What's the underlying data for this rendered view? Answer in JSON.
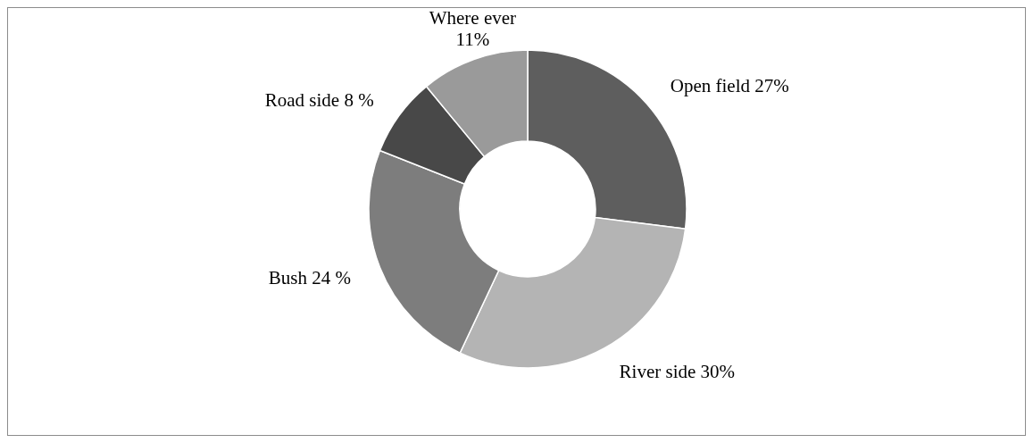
{
  "chart_data": {
    "type": "donut",
    "categories": [
      "Open field",
      "River side",
      "Bush",
      "Road side",
      "Where ever"
    ],
    "values": [
      27,
      30,
      24,
      8,
      11
    ],
    "value_labels": [
      "27%",
      "30%",
      "24 %",
      "8 %",
      "11%"
    ],
    "colors": [
      "#5e5e5e",
      "#b4b4b4",
      "#7d7d7d",
      "#484848",
      "#9a9a9a"
    ]
  }
}
